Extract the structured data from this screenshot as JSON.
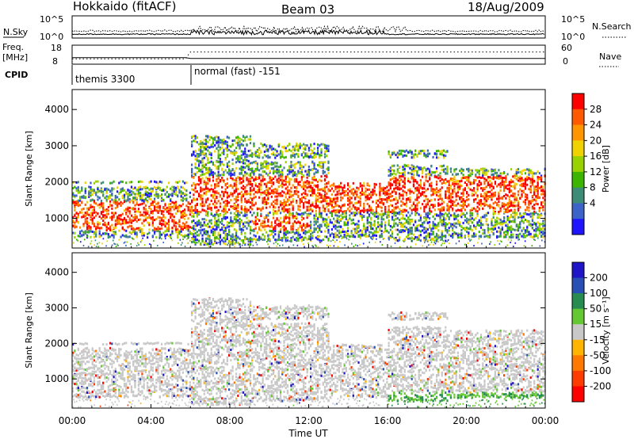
{
  "header": {
    "station": "Hokkaido (fitACF)",
    "beam": "Beam 03",
    "date": "18/Aug/2009"
  },
  "panels": {
    "nsky": {
      "label": "N.Sky",
      "left_ticks": [
        "10^5",
        "10^0"
      ],
      "right_ticks": [
        "10^5",
        "10^0"
      ],
      "right_label": "N.Search"
    },
    "freq": {
      "label": "Freq.",
      "unit": "[MHz]",
      "left_ticks": [
        "18",
        "8"
      ],
      "right_ticks": [
        "60",
        "0"
      ],
      "right_label": "Nave"
    },
    "cpid": {
      "label": "CPID",
      "modes": [
        "themis 3300",
        "normal (fast) -151"
      ]
    }
  },
  "chart_data": [
    {
      "type": "heatmap",
      "title": "",
      "xlabel": "Time UT",
      "ylabel": "Slant Range [km]",
      "x_ticks": [
        "00:00",
        "04:00",
        "08:00",
        "12:00",
        "16:00",
        "20:00",
        "00:00"
      ],
      "y_ticks": [
        1000,
        2000,
        3000,
        4000
      ],
      "ylim": [
        180,
        4550
      ],
      "colorbar": {
        "label": "Power [dB]",
        "ticks": [
          28,
          24,
          20,
          16,
          12,
          8,
          4
        ],
        "colors": [
          "#ff0000",
          "#ff5a00",
          "#ff9600",
          "#f0d200",
          "#98d200",
          "#3cb400",
          "#3c8c78",
          "#3c64c8",
          "#1e14ff"
        ]
      }
    },
    {
      "type": "heatmap",
      "title": "",
      "xlabel": "Time UT",
      "ylabel": "Slant Range [km]",
      "x_ticks": [
        "00:00",
        "04:00",
        "08:00",
        "12:00",
        "16:00",
        "20:00",
        "00:00"
      ],
      "y_ticks": [
        1000,
        2000,
        3000,
        4000
      ],
      "ylim": [
        180,
        4550
      ],
      "colorbar": {
        "label": "Velocity [m s⁻¹]",
        "ticks": [
          200,
          100,
          50,
          15,
          -15,
          -50,
          -100,
          -200
        ],
        "colors": [
          "#1e14c8",
          "#2850b4",
          "#288c50",
          "#64c832",
          "#c8c8c8",
          "#ffb400",
          "#ff7800",
          "#ff3c00",
          "#ff0000"
        ]
      }
    }
  ],
  "time_axis": {
    "label": "Time UT",
    "ticks": [
      "00:00",
      "04:00",
      "08:00",
      "12:00",
      "16:00",
      "20:00",
      "00:00"
    ]
  }
}
